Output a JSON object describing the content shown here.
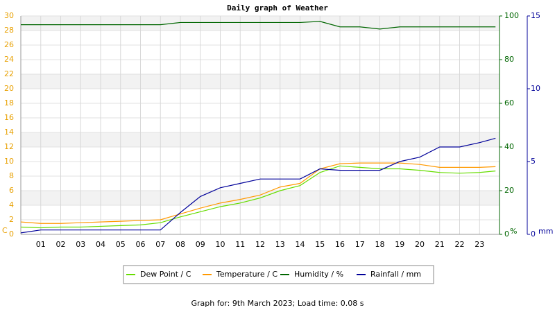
{
  "chart_data": {
    "type": "line",
    "title": "Daily graph of Weather",
    "x": [
      0,
      1,
      2,
      3,
      4,
      5,
      6,
      7,
      8,
      9,
      10,
      11,
      12,
      13,
      14,
      15,
      16,
      17,
      18,
      19,
      20,
      21,
      22,
      23,
      23.8
    ],
    "xlim": [
      0,
      24
    ],
    "xticks": [
      {
        "value": 1,
        "label": "01"
      },
      {
        "value": 2,
        "label": "02"
      },
      {
        "value": 3,
        "label": "03"
      },
      {
        "value": 4,
        "label": "04"
      },
      {
        "value": 5,
        "label": "05"
      },
      {
        "value": 6,
        "label": "06"
      },
      {
        "value": 7,
        "label": "07"
      },
      {
        "value": 8,
        "label": "08"
      },
      {
        "value": 9,
        "label": "09"
      },
      10,
      11,
      12,
      13,
      14,
      15,
      16,
      17,
      18,
      19,
      20,
      21,
      22,
      23
    ],
    "ylim": [
      0,
      30
    ],
    "yticks": [
      0,
      2,
      4,
      6,
      8,
      10,
      12,
      14,
      16,
      18,
      20,
      22,
      24,
      26,
      28,
      30
    ],
    "ylabel": "C",
    "y2lim": [
      0,
      100
    ],
    "y2ticks": [
      0,
      20,
      40,
      60,
      80,
      100
    ],
    "y2label": "%",
    "y3lim": [
      0,
      15
    ],
    "y3ticks": [
      0,
      5,
      10,
      15
    ],
    "y3label": "mm",
    "grid": true,
    "series": [
      {
        "name": "Dew Point / C",
        "color": "#66dd00",
        "axis": "y",
        "values": [
          1.0,
          0.9,
          1.0,
          1.0,
          1.1,
          1.2,
          1.3,
          1.6,
          2.4,
          3.1,
          3.8,
          4.3,
          5.0,
          6.0,
          6.7,
          8.5,
          9.4,
          9.2,
          9.0,
          9.0,
          8.8,
          8.5,
          8.4,
          8.5,
          8.7
        ]
      },
      {
        "name": "Temperature / C",
        "color": "#ff9900",
        "axis": "y",
        "values": [
          1.7,
          1.5,
          1.5,
          1.6,
          1.7,
          1.8,
          1.9,
          2.0,
          2.8,
          3.6,
          4.3,
          4.8,
          5.4,
          6.5,
          7.0,
          9.0,
          9.7,
          9.8,
          9.8,
          9.8,
          9.6,
          9.2,
          9.2,
          9.2,
          9.3
        ]
      },
      {
        "name": "Humidity / %",
        "color": "#006600",
        "axis": "y2",
        "values": [
          96,
          96,
          96,
          96,
          96,
          96,
          96,
          96,
          97,
          97,
          97,
          97,
          97,
          97,
          97,
          97.5,
          95,
          95,
          94,
          95,
          95,
          95,
          95,
          95,
          95
        ]
      },
      {
        "name": "Rainfall / mm",
        "color": "#000099",
        "axis": "y3",
        "values": [
          0.1,
          0.3,
          0.3,
          0.3,
          0.3,
          0.3,
          0.3,
          0.3,
          1.5,
          2.6,
          3.2,
          3.5,
          3.8,
          3.8,
          3.8,
          4.5,
          4.4,
          4.4,
          4.4,
          5.0,
          5.3,
          6.0,
          6.0,
          6.3,
          6.6
        ]
      }
    ]
  },
  "footer": "Graph for: 9th March 2023; Load time: 0.08 s"
}
